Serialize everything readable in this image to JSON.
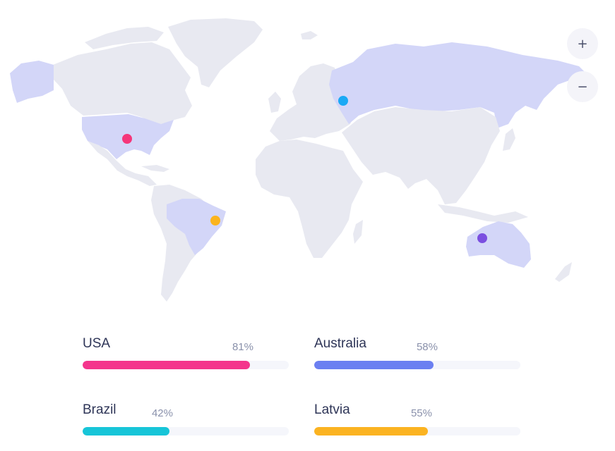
{
  "map": {
    "zoom_in_label": "+",
    "zoom_out_label": "−",
    "land_color": "#e8e9f1",
    "highlight_color": "#d3d6f8",
    "markers": [
      {
        "country": "USA",
        "color": "#f5367a"
      },
      {
        "country": "Latvia",
        "color": "#1aa9f5"
      },
      {
        "country": "Brazil",
        "color": "#fbb41d"
      },
      {
        "country": "Australia",
        "color": "#7b4fe0"
      }
    ]
  },
  "stats": [
    {
      "name": "USA",
      "percent_label": "81%",
      "value": 81,
      "color": "#f4358c"
    },
    {
      "name": "Australia",
      "percent_label": "58%",
      "value": 58,
      "color": "#6b7ff1"
    },
    {
      "name": "Brazil",
      "percent_label": "42%",
      "value": 42,
      "color": "#17c5d8"
    },
    {
      "name": "Latvia",
      "percent_label": "55%",
      "value": 55,
      "color": "#fbb321"
    }
  ]
}
